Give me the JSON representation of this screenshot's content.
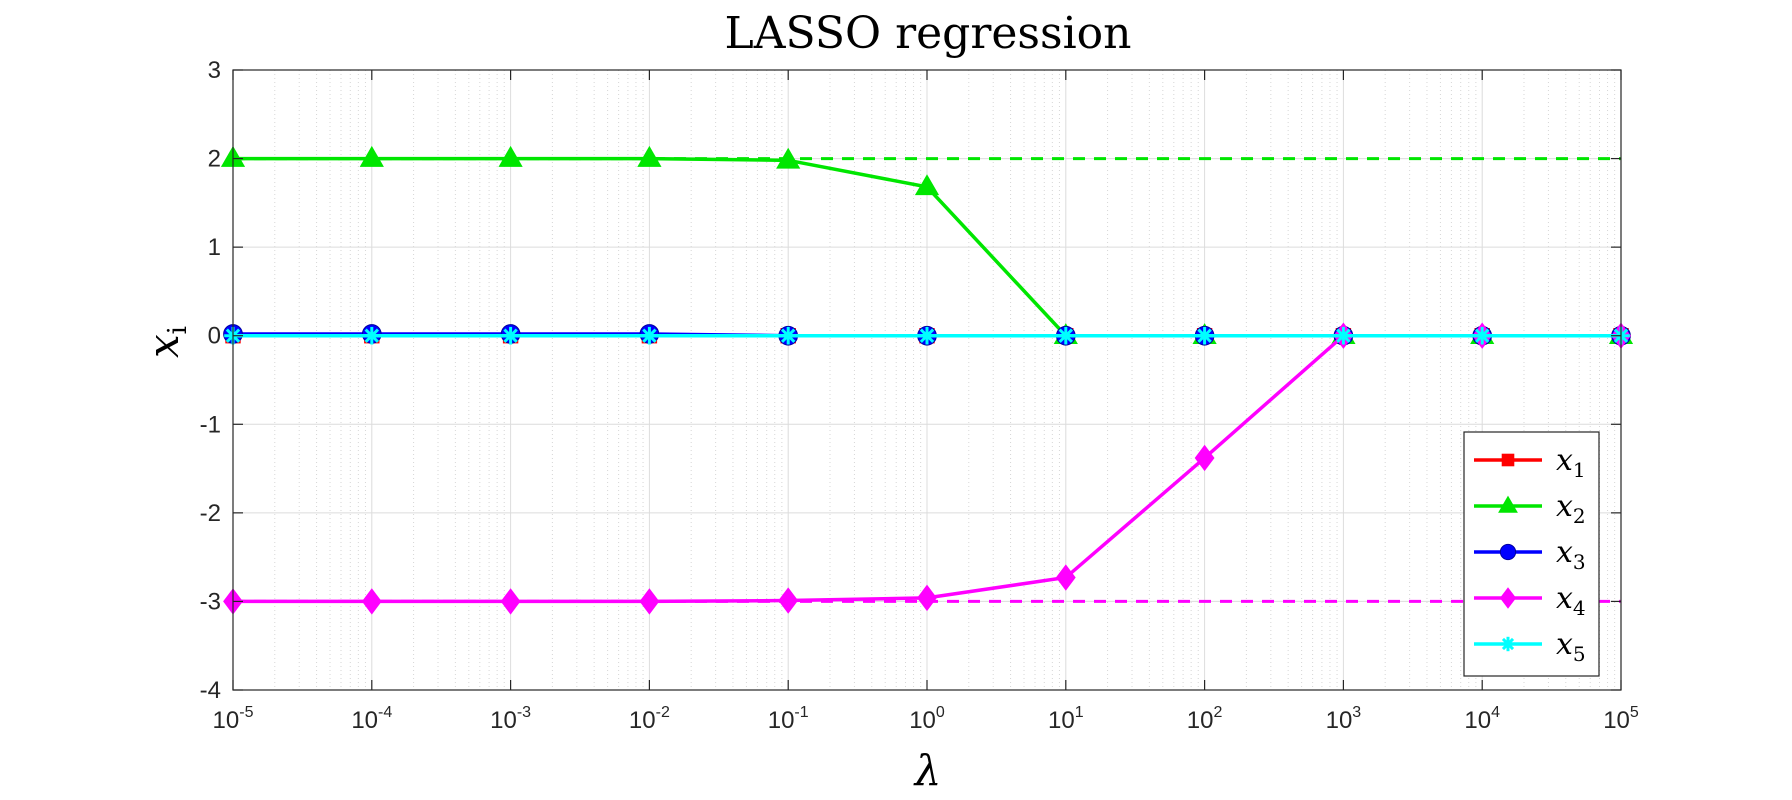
{
  "chart_data": {
    "type": "line",
    "title": "LASSO regression",
    "xlabel": "λ",
    "ylabel": "x",
    "ylabel_sub": "i",
    "xscale": "log",
    "xlim": [
      1e-05,
      100000.0
    ],
    "ylim": [
      -4,
      3
    ],
    "grid": true,
    "minor_grid_x": true,
    "legend_position": "bottom-right",
    "x": [
      1e-05,
      0.0001,
      0.001,
      0.01,
      0.1,
      1,
      10,
      100,
      1000,
      10000,
      100000
    ],
    "x_tick_labels": [
      {
        "base": "10",
        "exp": "-5"
      },
      {
        "base": "10",
        "exp": "-4"
      },
      {
        "base": "10",
        "exp": "-3"
      },
      {
        "base": "10",
        "exp": "-2"
      },
      {
        "base": "10",
        "exp": "-1"
      },
      {
        "base": "10",
        "exp": "0"
      },
      {
        "base": "10",
        "exp": "1"
      },
      {
        "base": "10",
        "exp": "2"
      },
      {
        "base": "10",
        "exp": "3"
      },
      {
        "base": "10",
        "exp": "4"
      },
      {
        "base": "10",
        "exp": "5"
      }
    ],
    "y_ticks": [
      3,
      2,
      1,
      0,
      -1,
      -2,
      -3,
      -4
    ],
    "series": [
      {
        "name": "x",
        "sub": "1",
        "color": "#ff0000",
        "marker": "square",
        "values": [
          0,
          0,
          0,
          0,
          0,
          0,
          0,
          0,
          0,
          0,
          0
        ]
      },
      {
        "name": "x",
        "sub": "2",
        "color": "#00e600",
        "marker": "triangle",
        "values": [
          2.0,
          2.0,
          2.0,
          2.0,
          1.98,
          1.68,
          0,
          0,
          0,
          0,
          0
        ]
      },
      {
        "name": "x",
        "sub": "3",
        "color": "#0000ff",
        "marker": "circle",
        "values": [
          0.02,
          0.02,
          0.02,
          0.02,
          0,
          0,
          0,
          0,
          0,
          0,
          0
        ]
      },
      {
        "name": "x",
        "sub": "4",
        "color": "#ff00ff",
        "marker": "diamond",
        "values": [
          -3.0,
          -3.0,
          -3.0,
          -3.0,
          -2.99,
          -2.96,
          -2.73,
          -1.38,
          0,
          0,
          0
        ]
      },
      {
        "name": "x",
        "sub": "5",
        "color": "#00ffff",
        "marker": "asterisk",
        "values": [
          0,
          0,
          0,
          0,
          0,
          0,
          0,
          0,
          0,
          0,
          0
        ]
      }
    ],
    "reference_lines": [
      {
        "y": 2,
        "color": "#00e600",
        "style": "dashed"
      },
      {
        "y": -3,
        "color": "#ff00ff",
        "style": "dashed"
      }
    ]
  }
}
